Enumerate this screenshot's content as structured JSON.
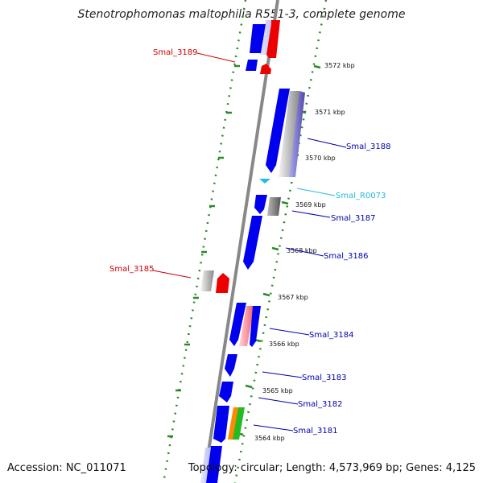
{
  "title": "Stenotrophomonas maltophilia R551-3, complete genome",
  "footer": {
    "accession": "Accession: NC_011071",
    "topology": "Topology: circular; Length: 4,573,969 bp; Genes: 4,125"
  },
  "colors": {
    "forward_gene": "#0000ee",
    "reverse_gene": "#ee0000",
    "forward_label": "#0000aa",
    "reverse_label": "#cc0000",
    "rna_label": "#22bbdd",
    "scale_ticks": "#2a8a2a",
    "backbone": "#888888"
  },
  "kbp_labels": [
    "3572 kbp",
    "3571 kbp",
    "3570 kbp",
    "3569 kbp",
    "3568 kbp",
    "3567 kbp",
    "3566 kbp",
    "3565 kbp",
    "3564 kbp"
  ],
  "gene_labels": {
    "reverse": [
      {
        "name": "Smal_3189"
      },
      {
        "name": "Smal_3185"
      }
    ],
    "forward": [
      {
        "name": "Smal_3188"
      },
      {
        "name": "Smal_R0073"
      },
      {
        "name": "Smal_3187"
      },
      {
        "name": "Smal_3186"
      },
      {
        "name": "Smal_3184"
      },
      {
        "name": "Smal_3183"
      },
      {
        "name": "Smal_3182"
      },
      {
        "name": "Smal_3181"
      }
    ]
  }
}
